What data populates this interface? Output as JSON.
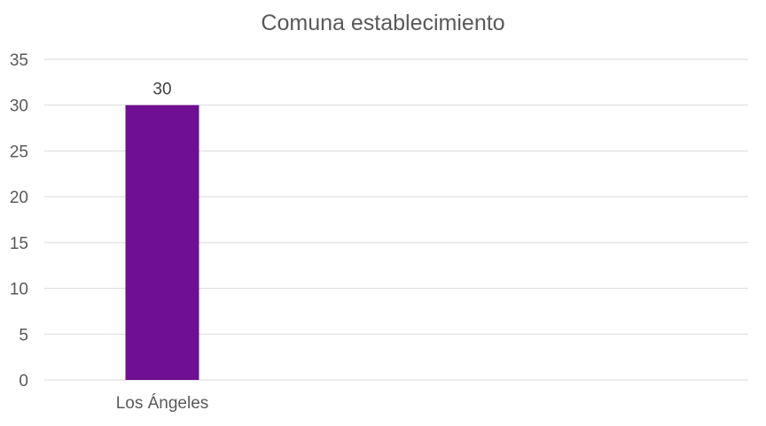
{
  "chart_data": {
    "type": "bar",
    "title": "Comuna establecimiento",
    "categories": [
      "Los Ángeles"
    ],
    "values": [
      30
    ],
    "data_labels": [
      "30"
    ],
    "ylim": [
      0,
      35
    ],
    "yticks": [
      0,
      5,
      10,
      15,
      20,
      25,
      30,
      35
    ],
    "grid": true,
    "legend": "none",
    "colors": {
      "bar": "#6f0f91",
      "grid": "#d9d9d9",
      "text": "#595959"
    }
  }
}
